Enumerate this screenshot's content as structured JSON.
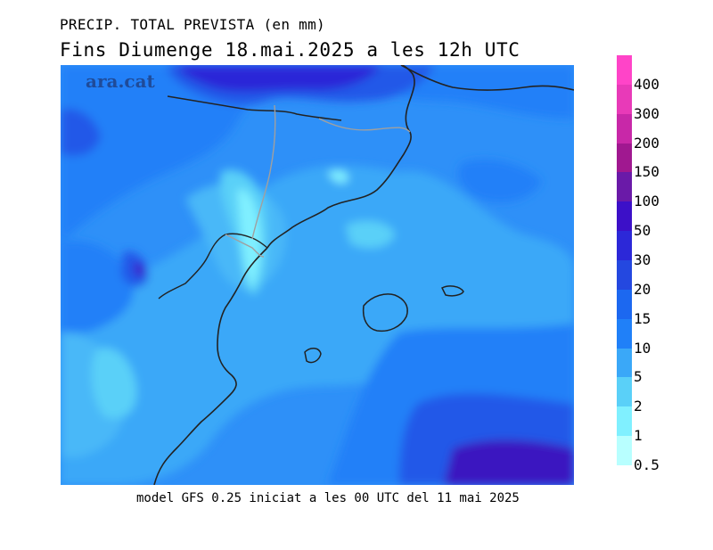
{
  "title_line1": "PRECIP. TOTAL PREVISTA (en mm)",
  "title_line2": "Fins Diumenge 18.mai.2025 a les 12h UTC",
  "watermark": "ara.cat",
  "footer": "model GFS 0.25 iniciat a les 00 UTC del 11 mai 2025",
  "legend": {
    "labels": [
      "400",
      "300",
      "200",
      "150",
      "100",
      "50",
      "30",
      "20",
      "15",
      "10",
      "5",
      "2",
      "1",
      "0.5"
    ],
    "colors": [
      "#ff44c8",
      "#e83ab8",
      "#c828a8",
      "#a01890",
      "#6a1aa8",
      "#3c10c8",
      "#2c28d8",
      "#2448e0",
      "#1c68f0",
      "#2080f8",
      "#3aa8f8",
      "#5ad0f8",
      "#80f0ff",
      "#b8ffff"
    ]
  },
  "map": {
    "region": "Catalunya, Illes Balears",
    "ocean_color": "#3aa8f8",
    "coastline_color": "#222222",
    "border_color": "#a0a0a0"
  }
}
